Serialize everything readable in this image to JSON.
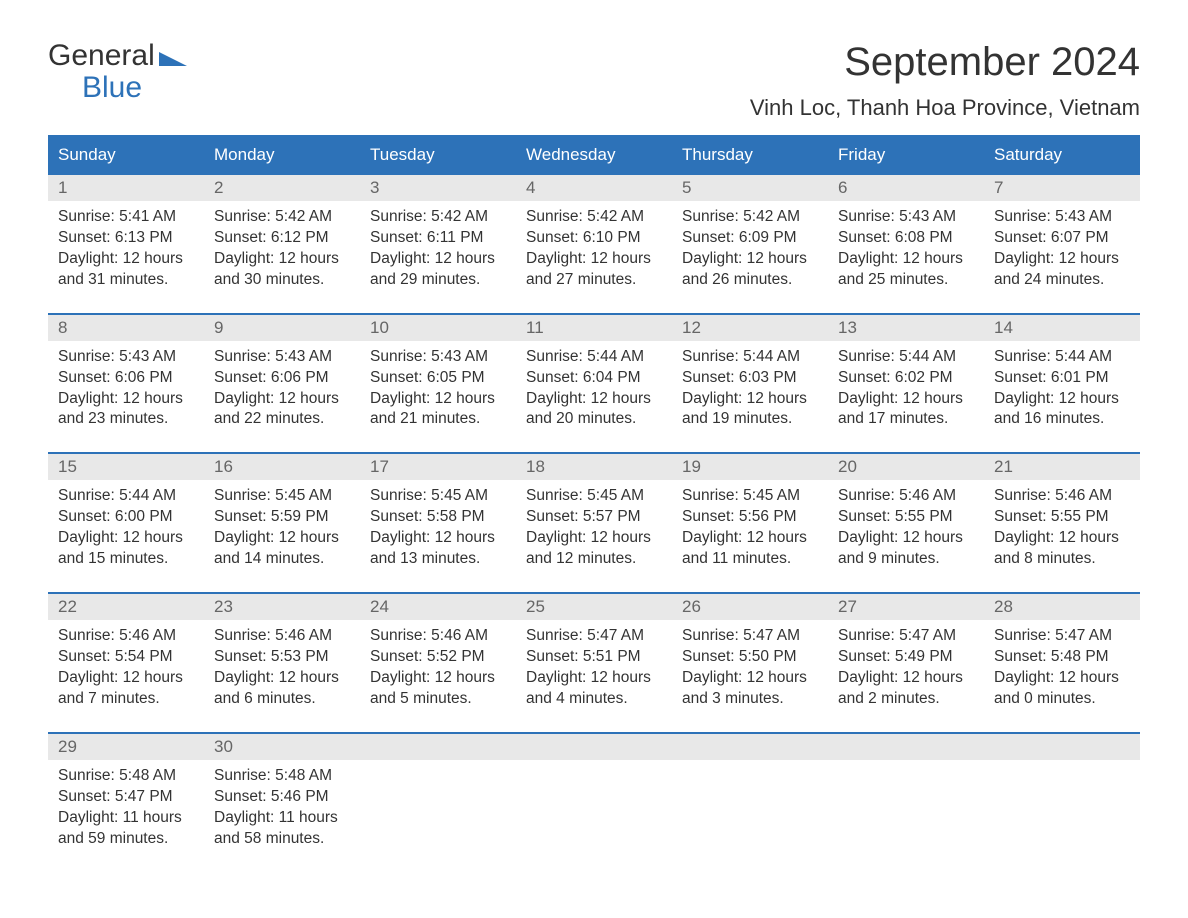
{
  "logo": {
    "general": "General",
    "blue": "Blue"
  },
  "title": "September 2024",
  "location": "Vinh Loc, Thanh Hoa Province, Vietnam",
  "colors": {
    "header_bg": "#2d72b8",
    "header_text": "#ffffff",
    "daynum_bg": "#e8e8e8",
    "daynum_text": "#666666",
    "body_text": "#333333",
    "page_bg": "#ffffff",
    "accent": "#2d72b8"
  },
  "typography": {
    "title_fontsize": 40,
    "location_fontsize": 22,
    "dayheader_fontsize": 17,
    "daynum_fontsize": 17,
    "body_fontsize": 15.5,
    "logo_fontsize": 30
  },
  "day_names": [
    "Sunday",
    "Monday",
    "Tuesday",
    "Wednesday",
    "Thursday",
    "Friday",
    "Saturday"
  ],
  "weeks": [
    [
      {
        "n": "1",
        "sunrise": "Sunrise: 5:41 AM",
        "sunset": "Sunset: 6:13 PM",
        "dl1": "Daylight: 12 hours",
        "dl2": "and 31 minutes."
      },
      {
        "n": "2",
        "sunrise": "Sunrise: 5:42 AM",
        "sunset": "Sunset: 6:12 PM",
        "dl1": "Daylight: 12 hours",
        "dl2": "and 30 minutes."
      },
      {
        "n": "3",
        "sunrise": "Sunrise: 5:42 AM",
        "sunset": "Sunset: 6:11 PM",
        "dl1": "Daylight: 12 hours",
        "dl2": "and 29 minutes."
      },
      {
        "n": "4",
        "sunrise": "Sunrise: 5:42 AM",
        "sunset": "Sunset: 6:10 PM",
        "dl1": "Daylight: 12 hours",
        "dl2": "and 27 minutes."
      },
      {
        "n": "5",
        "sunrise": "Sunrise: 5:42 AM",
        "sunset": "Sunset: 6:09 PM",
        "dl1": "Daylight: 12 hours",
        "dl2": "and 26 minutes."
      },
      {
        "n": "6",
        "sunrise": "Sunrise: 5:43 AM",
        "sunset": "Sunset: 6:08 PM",
        "dl1": "Daylight: 12 hours",
        "dl2": "and 25 minutes."
      },
      {
        "n": "7",
        "sunrise": "Sunrise: 5:43 AM",
        "sunset": "Sunset: 6:07 PM",
        "dl1": "Daylight: 12 hours",
        "dl2": "and 24 minutes."
      }
    ],
    [
      {
        "n": "8",
        "sunrise": "Sunrise: 5:43 AM",
        "sunset": "Sunset: 6:06 PM",
        "dl1": "Daylight: 12 hours",
        "dl2": "and 23 minutes."
      },
      {
        "n": "9",
        "sunrise": "Sunrise: 5:43 AM",
        "sunset": "Sunset: 6:06 PM",
        "dl1": "Daylight: 12 hours",
        "dl2": "and 22 minutes."
      },
      {
        "n": "10",
        "sunrise": "Sunrise: 5:43 AM",
        "sunset": "Sunset: 6:05 PM",
        "dl1": "Daylight: 12 hours",
        "dl2": "and 21 minutes."
      },
      {
        "n": "11",
        "sunrise": "Sunrise: 5:44 AM",
        "sunset": "Sunset: 6:04 PM",
        "dl1": "Daylight: 12 hours",
        "dl2": "and 20 minutes."
      },
      {
        "n": "12",
        "sunrise": "Sunrise: 5:44 AM",
        "sunset": "Sunset: 6:03 PM",
        "dl1": "Daylight: 12 hours",
        "dl2": "and 19 minutes."
      },
      {
        "n": "13",
        "sunrise": "Sunrise: 5:44 AM",
        "sunset": "Sunset: 6:02 PM",
        "dl1": "Daylight: 12 hours",
        "dl2": "and 17 minutes."
      },
      {
        "n": "14",
        "sunrise": "Sunrise: 5:44 AM",
        "sunset": "Sunset: 6:01 PM",
        "dl1": "Daylight: 12 hours",
        "dl2": "and 16 minutes."
      }
    ],
    [
      {
        "n": "15",
        "sunrise": "Sunrise: 5:44 AM",
        "sunset": "Sunset: 6:00 PM",
        "dl1": "Daylight: 12 hours",
        "dl2": "and 15 minutes."
      },
      {
        "n": "16",
        "sunrise": "Sunrise: 5:45 AM",
        "sunset": "Sunset: 5:59 PM",
        "dl1": "Daylight: 12 hours",
        "dl2": "and 14 minutes."
      },
      {
        "n": "17",
        "sunrise": "Sunrise: 5:45 AM",
        "sunset": "Sunset: 5:58 PM",
        "dl1": "Daylight: 12 hours",
        "dl2": "and 13 minutes."
      },
      {
        "n": "18",
        "sunrise": "Sunrise: 5:45 AM",
        "sunset": "Sunset: 5:57 PM",
        "dl1": "Daylight: 12 hours",
        "dl2": "and 12 minutes."
      },
      {
        "n": "19",
        "sunrise": "Sunrise: 5:45 AM",
        "sunset": "Sunset: 5:56 PM",
        "dl1": "Daylight: 12 hours",
        "dl2": "and 11 minutes."
      },
      {
        "n": "20",
        "sunrise": "Sunrise: 5:46 AM",
        "sunset": "Sunset: 5:55 PM",
        "dl1": "Daylight: 12 hours",
        "dl2": "and 9 minutes."
      },
      {
        "n": "21",
        "sunrise": "Sunrise: 5:46 AM",
        "sunset": "Sunset: 5:55 PM",
        "dl1": "Daylight: 12 hours",
        "dl2": "and 8 minutes."
      }
    ],
    [
      {
        "n": "22",
        "sunrise": "Sunrise: 5:46 AM",
        "sunset": "Sunset: 5:54 PM",
        "dl1": "Daylight: 12 hours",
        "dl2": "and 7 minutes."
      },
      {
        "n": "23",
        "sunrise": "Sunrise: 5:46 AM",
        "sunset": "Sunset: 5:53 PM",
        "dl1": "Daylight: 12 hours",
        "dl2": "and 6 minutes."
      },
      {
        "n": "24",
        "sunrise": "Sunrise: 5:46 AM",
        "sunset": "Sunset: 5:52 PM",
        "dl1": "Daylight: 12 hours",
        "dl2": "and 5 minutes."
      },
      {
        "n": "25",
        "sunrise": "Sunrise: 5:47 AM",
        "sunset": "Sunset: 5:51 PM",
        "dl1": "Daylight: 12 hours",
        "dl2": "and 4 minutes."
      },
      {
        "n": "26",
        "sunrise": "Sunrise: 5:47 AM",
        "sunset": "Sunset: 5:50 PM",
        "dl1": "Daylight: 12 hours",
        "dl2": "and 3 minutes."
      },
      {
        "n": "27",
        "sunrise": "Sunrise: 5:47 AM",
        "sunset": "Sunset: 5:49 PM",
        "dl1": "Daylight: 12 hours",
        "dl2": "and 2 minutes."
      },
      {
        "n": "28",
        "sunrise": "Sunrise: 5:47 AM",
        "sunset": "Sunset: 5:48 PM",
        "dl1": "Daylight: 12 hours",
        "dl2": "and 0 minutes."
      }
    ],
    [
      {
        "n": "29",
        "sunrise": "Sunrise: 5:48 AM",
        "sunset": "Sunset: 5:47 PM",
        "dl1": "Daylight: 11 hours",
        "dl2": "and 59 minutes."
      },
      {
        "n": "30",
        "sunrise": "Sunrise: 5:48 AM",
        "sunset": "Sunset: 5:46 PM",
        "dl1": "Daylight: 11 hours",
        "dl2": "and 58 minutes."
      },
      {
        "empty": true
      },
      {
        "empty": true
      },
      {
        "empty": true
      },
      {
        "empty": true
      },
      {
        "empty": true
      }
    ]
  ]
}
